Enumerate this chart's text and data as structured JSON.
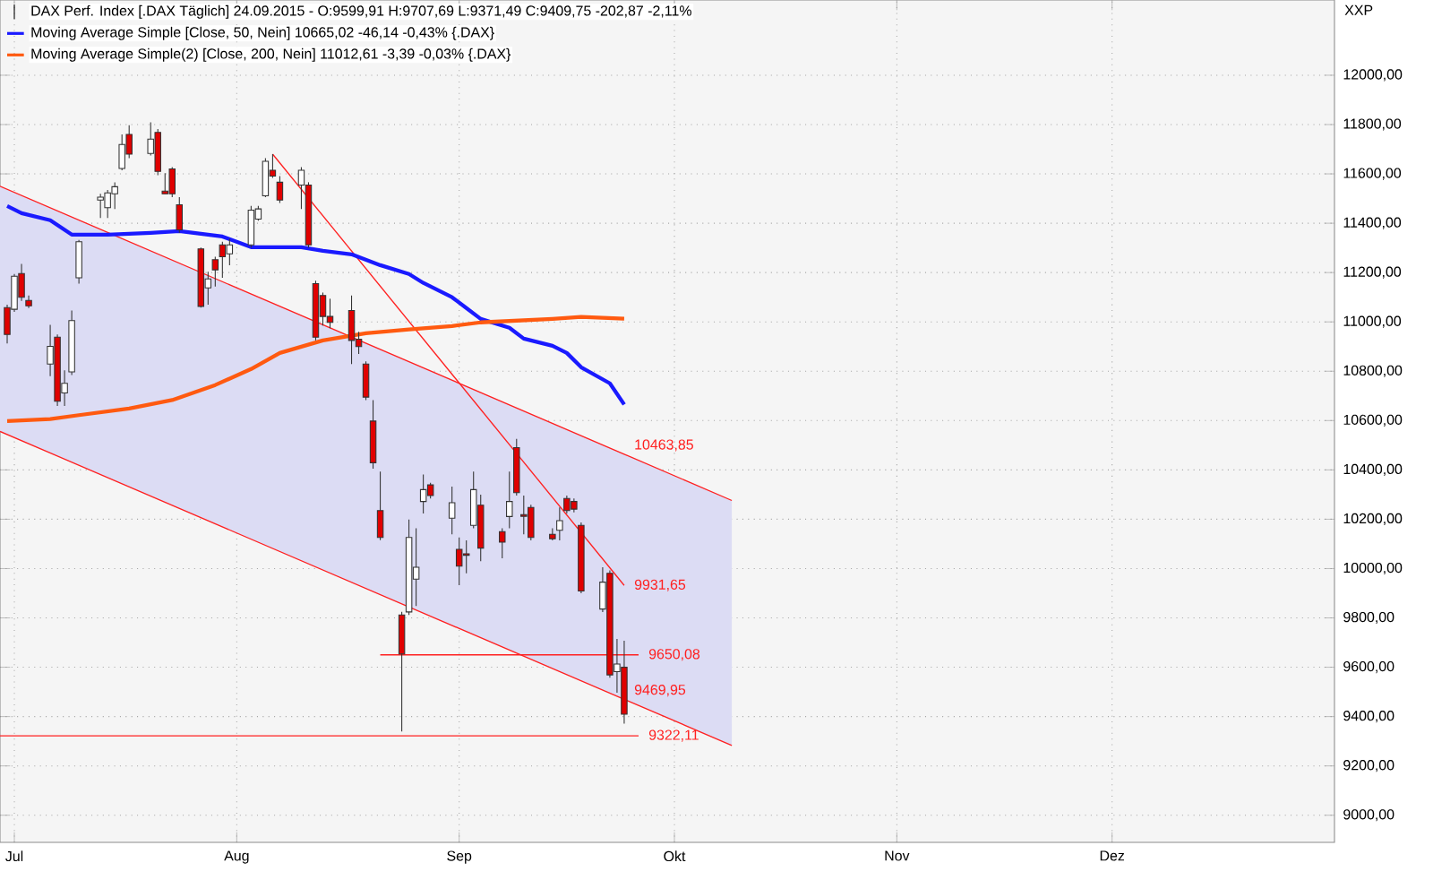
{
  "chart_data": {
    "type": "candlestick",
    "title": "DAX Perf. Index [.DAX  Täglich] 24.09.2015 - O:9599,91 H:9707,69 L:9371,49 C:9409,75 -202,87 -2,11%",
    "ylabel": "XXP",
    "colors": [
      "#e00000",
      "#ffffff",
      "#e00000",
      "#e00000",
      "#ffffff",
      "#e00000",
      "#ffffff",
      "#ffffff",
      "#ffffff",
      "#ffffff",
      "#ffffff",
      "#ffffff",
      "#ffffff",
      "#e00000",
      "#ffffff",
      "#e00000",
      "#e00000",
      "#e00000",
      "#e00000",
      "#e00000",
      "#ffffff",
      "#e00000",
      "#e00000",
      "#ffffff",
      "#ffffff",
      "#ffffff",
      "#ffffff",
      "#e00000",
      "#e00000",
      "#ffffff",
      "#e00000",
      "#e00000",
      "#e00000",
      "#e00000",
      "#e00000",
      "#e00000",
      "#e00000",
      "#e00000",
      "#e00000",
      "#e00000",
      "#ffffff",
      "#ffffff",
      "#ffffff",
      "#e00000",
      "#ffffff",
      "#e00000",
      "#e00000",
      "#ffffff",
      "#e00000",
      "#e00000",
      "#ffffff",
      "#e00000",
      "#e00000",
      "#e00000",
      "#e00000",
      "#ffffff",
      "#e00000",
      "#e00000",
      "#e00000",
      "#ffffff",
      "#e00000",
      "#ffffff",
      "#e00000"
    ],
    "x": [
      "2015-06-30",
      "2015-07-01",
      "2015-07-02",
      "2015-07-03",
      "2015-07-06",
      "2015-07-07",
      "2015-07-08",
      "2015-07-09",
      "2015-07-10",
      "2015-07-13",
      "2015-07-14",
      "2015-07-15",
      "2015-07-16",
      "2015-07-17",
      "2015-07-20",
      "2015-07-21",
      "2015-07-22",
      "2015-07-23",
      "2015-07-24",
      "2015-07-27",
      "2015-07-28",
      "2015-07-29",
      "2015-07-30",
      "2015-07-31",
      "2015-08-03",
      "2015-08-04",
      "2015-08-05",
      "2015-08-06",
      "2015-08-07",
      "2015-08-10",
      "2015-08-11",
      "2015-08-12",
      "2015-08-13",
      "2015-08-14",
      "2015-08-17",
      "2015-08-18",
      "2015-08-19",
      "2015-08-20",
      "2015-08-21",
      "2015-08-24",
      "2015-08-25",
      "2015-08-26",
      "2015-08-27",
      "2015-08-28",
      "2015-08-31",
      "2015-09-01",
      "2015-09-02",
      "2015-09-03",
      "2015-09-04",
      "2015-09-07",
      "2015-09-08",
      "2015-09-09",
      "2015-09-10",
      "2015-09-11",
      "2015-09-14",
      "2015-09-15",
      "2015-09-16",
      "2015-09-17",
      "2015-09-18",
      "2015-09-21",
      "2015-09-22",
      "2015-09-23",
      "2015-09-24"
    ],
    "ohlc": [
      [
        11058,
        11070,
        10913,
        10949
      ],
      [
        11051,
        11194,
        11041,
        11185
      ],
      [
        11196,
        11235,
        11085,
        11100
      ],
      [
        11087,
        11107,
        11056,
        11065
      ],
      [
        10829,
        10988,
        10780,
        10901
      ],
      [
        10938,
        10949,
        10659,
        10678
      ],
      [
        10712,
        10804,
        10659,
        10751
      ],
      [
        10797,
        11046,
        10785,
        11005
      ],
      [
        11179,
        11332,
        11155,
        11325
      ],
      [
        11494,
        11519,
        11421,
        11506
      ],
      [
        11463,
        11535,
        11421,
        11523
      ],
      [
        11519,
        11566,
        11458,
        11548
      ],
      [
        11622,
        11760,
        11615,
        11719
      ],
      [
        11760,
        11797,
        11664,
        11680
      ],
      [
        11683,
        11809,
        11675,
        11741
      ],
      [
        11768,
        11782,
        11595,
        11610
      ],
      [
        11530,
        11603,
        11519,
        11519
      ],
      [
        11620,
        11627,
        11506,
        11519
      ],
      [
        11475,
        11506,
        11361,
        11373
      ],
      [
        11296,
        11301,
        11058,
        11063
      ],
      [
        11138,
        11203,
        11070,
        11174
      ],
      [
        11252,
        11264,
        11143,
        11211
      ],
      [
        11312,
        11325,
        11179,
        11264
      ],
      [
        11276,
        11337,
        11230,
        11312
      ],
      [
        11312,
        11470,
        11301,
        11453
      ],
      [
        11417,
        11470,
        11410,
        11458
      ],
      [
        11511,
        11664,
        11506,
        11651
      ],
      [
        11615,
        11680,
        11584,
        11591
      ],
      [
        11566,
        11591,
        11482,
        11494
      ],
      [
        11555,
        11627,
        11458,
        11615
      ],
      [
        11555,
        11566,
        11301,
        11312
      ],
      [
        11155,
        11167,
        10925,
        10938
      ],
      [
        11107,
        11119,
        10985,
        11022
      ],
      [
        11022,
        11094,
        10974,
        10998
      ],
      [
        11046,
        11107,
        10829,
        10925
      ],
      [
        10930,
        10960,
        10870,
        10900
      ],
      [
        10829,
        10840,
        10683,
        10695
      ],
      [
        10598,
        10683,
        10405,
        10429
      ],
      [
        10235,
        10393,
        10115,
        10126
      ],
      [
        9812,
        9825,
        9340,
        9654
      ],
      [
        9824,
        10199,
        9812,
        10126
      ],
      [
        9957,
        10163,
        9848,
        10005
      ],
      [
        10272,
        10381,
        10223,
        10320
      ],
      [
        10339,
        10348,
        10284,
        10296
      ],
      [
        10204,
        10332,
        10139,
        10267
      ],
      [
        10078,
        10126,
        9933,
        10010
      ],
      [
        10060,
        10114,
        9981,
        10054
      ],
      [
        10175,
        10393,
        10163,
        10320
      ],
      [
        10257,
        10300,
        10030,
        10083
      ],
      [
        10150,
        10163,
        10042,
        10107
      ],
      [
        10211,
        10393,
        10163,
        10272
      ],
      [
        10490,
        10526,
        10296,
        10308
      ],
      [
        10219,
        10296,
        10139,
        10212
      ],
      [
        10248,
        10259,
        10114,
        10126
      ],
      [
        10139,
        10163,
        10114,
        10121
      ],
      [
        10155,
        10248,
        10114,
        10194
      ],
      [
        10284,
        10296,
        10223,
        10235
      ],
      [
        10272,
        10284,
        10228,
        10241
      ],
      [
        10175,
        10187,
        9900,
        9909
      ],
      [
        9836,
        10005,
        9824,
        9945
      ],
      [
        9981,
        9993,
        9558,
        9569
      ],
      [
        9582,
        9715,
        9497,
        9613
      ],
      [
        9599.91,
        9707.69,
        9371.49,
        9409.75
      ]
    ],
    "series": [
      {
        "type": "line",
        "color": "#ff2020",
        "x": [
          "2015-06-29",
          "2015-09-24",
          "2015-10-09"
        ],
        "values": [
          11550,
          10463.85,
          10276
        ],
        "lower": [
          10556,
          9469.95,
          9283
        ],
        "upper": [
          11550,
          10463.85,
          10276
        ]
      },
      {
        "type": "line",
        "color": "#ff2020",
        "x": [
          "2015-06-29",
          "2015-09-24",
          "2015-10-09"
        ],
        "values": [
          10556,
          9469.95,
          9283
        ]
      },
      {
        "type": "line",
        "color": "#ff2020",
        "x": [
          "2015-08-06",
          "2015-09-24"
        ],
        "values": [
          11680,
          9931.65
        ]
      },
      {
        "type": "line",
        "color": "#ff2020",
        "x": [
          "2015-08-21",
          "2015-09-26"
        ],
        "values": [
          9650.08,
          9650.08
        ]
      },
      {
        "type": "line",
        "color": "#ff2020",
        "x": [
          "2015-06-29",
          "2015-09-26"
        ],
        "values": [
          9322.11,
          9322.11
        ]
      },
      {
        "type": "line",
        "name": "Moving Average Simple [Close, 50, Nein] 10665,02 -46,14 -0,43% {.DAX}",
        "color": "#1a1aff",
        "x": [
          "2015-06-30",
          "2015-07-02",
          "2015-07-06",
          "2015-07-09",
          "2015-07-14",
          "2015-07-20",
          "2015-07-24",
          "2015-07-30",
          "2015-08-03",
          "2015-08-10",
          "2015-08-13",
          "2015-08-17",
          "2015-08-19",
          "2015-08-21",
          "2015-08-25",
          "2015-08-27",
          "2015-08-31",
          "2015-09-02",
          "2015-09-04",
          "2015-09-08",
          "2015-09-10",
          "2015-09-14",
          "2015-09-16",
          "2015-09-18",
          "2015-09-22",
          "2015-09-24"
        ],
        "values": [
          11470,
          11441,
          11412,
          11354,
          11354,
          11361,
          11368,
          11346,
          11303,
          11303,
          11288,
          11274,
          11252,
          11230,
          11194,
          11158,
          11100,
          11056,
          11012,
          10976,
          10932,
          10903,
          10874,
          10816,
          10751,
          10665
        ]
      },
      {
        "type": "line",
        "name": "Moving Average Simple(2) [Close, 200, Nein] 11012,61 -3,39 -0,03% {.DAX}",
        "color": "#ff5a10",
        "x": [
          "2015-06-30",
          "2015-07-06",
          "2015-07-10",
          "2015-07-17",
          "2015-07-23",
          "2015-07-29",
          "2015-08-03",
          "2015-08-07",
          "2015-08-13",
          "2015-08-19",
          "2015-08-25",
          "2015-08-31",
          "2015-09-04",
          "2015-09-14",
          "2015-09-18",
          "2015-09-24"
        ],
        "values": [
          10598,
          10606,
          10622,
          10649,
          10683,
          10744,
          10809,
          10874,
          10925,
          10954,
          10969,
          10983,
          10998,
          11012,
          11020,
          11012.61
        ]
      }
    ],
    "annotations": [
      {
        "text": "10463,85",
        "x": "2015-09-24",
        "y": 10463.85
      },
      {
        "text": "9931,65",
        "x": "2015-09-24",
        "y": 9931.65
      },
      {
        "text": "9650,08",
        "x": "2015-09-26",
        "y": 9650.08
      },
      {
        "text": "9469,95",
        "x": "2015-09-24",
        "y": 9469.95
      },
      {
        "text": "9322,11",
        "x": "2015-09-26",
        "y": 9322.11
      }
    ],
    "xlim": [
      "2015-06-29",
      "2016-01-01"
    ],
    "ylim": [
      8890,
      12305
    ],
    "xticks": [
      {
        "value": "2015-07-01",
        "label": "Jul"
      },
      {
        "value": "2015-08-01",
        "label": "Aug"
      },
      {
        "value": "2015-09-01",
        "label": "Sep"
      },
      {
        "value": "2015-10-01",
        "label": "Okt"
      },
      {
        "value": "2015-11-01",
        "label": "Nov"
      },
      {
        "value": "2015-12-01",
        "label": "Dez"
      }
    ],
    "yticks": [
      {
        "value": 9000,
        "label": "9000,00"
      },
      {
        "value": 9200,
        "label": "9200,00"
      },
      {
        "value": 9400,
        "label": "9400,00"
      },
      {
        "value": 9600,
        "label": "9600,00"
      },
      {
        "value": 9800,
        "label": "9800,00"
      },
      {
        "value": 10000,
        "label": "10000,00"
      },
      {
        "value": 10200,
        "label": "10200,00"
      },
      {
        "value": 10400,
        "label": "10400,00"
      },
      {
        "value": 10600,
        "label": "10600,00"
      },
      {
        "value": 10800,
        "label": "10800,00"
      },
      {
        "value": 11000,
        "label": "11000,00"
      },
      {
        "value": 11200,
        "label": "11200,00"
      },
      {
        "value": 11400,
        "label": "11400,00"
      },
      {
        "value": 11600,
        "label": "11600,00"
      },
      {
        "value": 11800,
        "label": "11800,00"
      },
      {
        "value": 12000,
        "label": "12000,00"
      }
    ],
    "grid": true,
    "legend": "top left"
  }
}
